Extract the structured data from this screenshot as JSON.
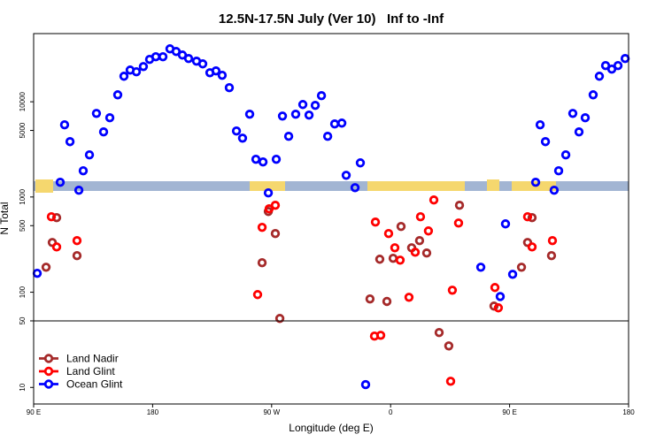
{
  "chart_data": {
    "type": "scatter",
    "title": "12.5N-17.5N July (Ver 10)   Inf to -Inf",
    "xlabel": "Longitude (deg E)",
    "ylabel": "N Total",
    "xlim": [
      90,
      540
    ],
    "xticks": [
      {
        "value": 90,
        "label": "90 E"
      },
      {
        "value": 180,
        "label": "180"
      },
      {
        "value": 270,
        "label": "90 W"
      },
      {
        "value": 360,
        "label": "0"
      },
      {
        "value": 450,
        "label": "90 E"
      },
      {
        "value": 540,
        "label": "180"
      }
    ],
    "ylim": [
      6.7,
      52000
    ],
    "yscale": "log",
    "yticks": [
      10,
      50,
      100,
      500,
      1000,
      5000,
      10000
    ],
    "reference_line": 50,
    "legend": "bottomleft",
    "series": [
      {
        "name": "Land Nadir",
        "color": "#a52a2a",
        "x": [
          99.4,
          104.1,
          107.4,
          122.8,
          262.8,
          267.5,
          272.8,
          276.2,
          344.4,
          351.8,
          357.2,
          361.9,
          367.9,
          375.9,
          381.9,
          387.3,
          396.7,
          404.0,
          412.1,
          438.2,
          459.0,
          463.6,
          467.0,
          481.7
        ],
        "values": [
          183,
          333,
          607,
          242,
          204,
          704,
          413,
          53,
          85,
          222,
          80,
          227,
          490,
          293,
          348,
          258,
          37.7,
          27.3,
          818,
          71.5,
          183,
          333,
          607,
          242
        ]
      },
      {
        "name": "Land Glint",
        "color": "#ff0000",
        "x": [
          103.4,
          107.4,
          122.8,
          259.4,
          262.8,
          268.1,
          272.8,
          348.5,
          347.8,
          352.5,
          358.5,
          363.2,
          367.2,
          373.9,
          378.6,
          382.6,
          388.6,
          392.7,
          406.7,
          411.4,
          405.4,
          438.9,
          441.5,
          463.6,
          467.0,
          482.4
        ],
        "values": [
          620,
          299,
          348,
          94.4,
          480,
          751,
          818,
          545,
          34.6,
          35.3,
          413,
          293,
          217,
          88.5,
          263,
          620,
          440,
          930,
          105,
          533,
          11.6,
          112,
          68.5,
          620,
          299,
          348
        ]
      },
      {
        "name": "Ocean Glint",
        "color": "#0000ff",
        "x": [
          92.7,
          110.1,
          113.4,
          117.5,
          124.2,
          127.5,
          132.2,
          137.5,
          142.9,
          147.6,
          153.6,
          158.3,
          163.0,
          167.7,
          173.0,
          177.7,
          182.4,
          187.8,
          193.1,
          197.8,
          202.5,
          207.2,
          213.2,
          217.9,
          223.3,
          227.9,
          232.6,
          238.0,
          243.4,
          248.0,
          253.4,
          258.1,
          263.5,
          267.5,
          273.5,
          278.2,
          282.9,
          288.2,
          293.6,
          298.3,
          303.0,
          307.7,
          312.4,
          317.7,
          323.1,
          326.4,
          333.1,
          337.1,
          341.1,
          428.2,
          442.9,
          446.9,
          452.3,
          469.7,
          473.1,
          477.1,
          483.7,
          487.1,
          492.5,
          497.8,
          502.5,
          507.2,
          513.2,
          517.9,
          522.6,
          527.3,
          532.0,
          537.4
        ],
        "values": [
          158,
          1426,
          5727,
          3812,
          1177,
          1884,
          2768,
          7551,
          4823,
          6792,
          11830,
          18540,
          21530,
          20650,
          23440,
          27860,
          29720,
          29720,
          35970,
          33730,
          30970,
          28440,
          26670,
          25000,
          20180,
          21090,
          18970,
          14060,
          4931,
          4150,
          7396,
          2489,
          2333,
          1104,
          2489,
          7080,
          4335,
          7396,
          9354,
          7244,
          9162,
          11590,
          4335,
          5848,
          5970,
          1691,
          1253,
          2282,
          10.7,
          183,
          90,
          522,
          154,
          1426,
          5727,
          3812,
          1177,
          1884,
          2768,
          7551,
          4823,
          6792,
          11830,
          18540,
          23990,
          22020,
          23990,
          28440
        ]
      }
    ]
  }
}
